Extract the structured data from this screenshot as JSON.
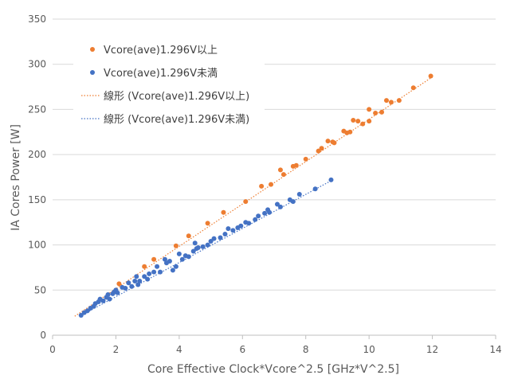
{
  "chart_data": {
    "type": "scatter",
    "xlabel": "Core Effective Clock*Vcore^2.5 [GHz*V^2.5]",
    "ylabel": "IA Cores Power [W]",
    "xlim": [
      0,
      14
    ],
    "ylim": [
      0,
      350
    ],
    "xticks": [
      0,
      2,
      4,
      6,
      8,
      10,
      12,
      14
    ],
    "yticks": [
      0,
      50,
      100,
      150,
      200,
      250,
      300,
      350
    ],
    "grid": "horizontal",
    "legend_position": "top-left",
    "series": [
      {
        "name": "Vcore(ave)1.296V以上",
        "color": "#ED7D31",
        "points": [
          [
            2.1,
            57
          ],
          [
            2.9,
            76
          ],
          [
            3.2,
            84
          ],
          [
            3.9,
            99
          ],
          [
            4.3,
            110
          ],
          [
            4.9,
            124
          ],
          [
            5.4,
            136
          ],
          [
            6.1,
            148
          ],
          [
            6.6,
            165
          ],
          [
            6.9,
            167
          ],
          [
            7.2,
            183
          ],
          [
            7.3,
            178
          ],
          [
            7.6,
            187
          ],
          [
            7.7,
            188
          ],
          [
            8.0,
            195
          ],
          [
            8.4,
            204
          ],
          [
            8.5,
            207
          ],
          [
            8.7,
            215
          ],
          [
            8.85,
            214
          ],
          [
            8.9,
            213
          ],
          [
            9.2,
            226
          ],
          [
            9.3,
            224
          ],
          [
            9.4,
            225
          ],
          [
            9.5,
            238
          ],
          [
            9.65,
            237
          ],
          [
            9.8,
            234
          ],
          [
            10.0,
            250
          ],
          [
            10.0,
            237
          ],
          [
            10.2,
            246
          ],
          [
            10.4,
            247
          ],
          [
            10.55,
            260
          ],
          [
            10.7,
            258
          ],
          [
            10.95,
            260
          ],
          [
            11.4,
            274
          ],
          [
            11.95,
            287
          ]
        ]
      },
      {
        "name": "Vcore(ave)1.296V未満",
        "color": "#4472C4",
        "points": [
          [
            0.9,
            22
          ],
          [
            1.0,
            25
          ],
          [
            1.1,
            27
          ],
          [
            1.2,
            30
          ],
          [
            1.3,
            32
          ],
          [
            1.35,
            35
          ],
          [
            1.45,
            37
          ],
          [
            1.5,
            40
          ],
          [
            1.6,
            38
          ],
          [
            1.7,
            42
          ],
          [
            1.75,
            45
          ],
          [
            1.8,
            40
          ],
          [
            1.9,
            46
          ],
          [
            1.95,
            48
          ],
          [
            2.0,
            50
          ],
          [
            2.05,
            47
          ],
          [
            2.2,
            53
          ],
          [
            2.3,
            52
          ],
          [
            2.4,
            58
          ],
          [
            2.5,
            54
          ],
          [
            2.6,
            60
          ],
          [
            2.65,
            65
          ],
          [
            2.7,
            56
          ],
          [
            2.75,
            60
          ],
          [
            2.9,
            65
          ],
          [
            3.0,
            62
          ],
          [
            3.05,
            68
          ],
          [
            3.2,
            70
          ],
          [
            3.3,
            76
          ],
          [
            3.4,
            70
          ],
          [
            3.55,
            84
          ],
          [
            3.6,
            80
          ],
          [
            3.7,
            82
          ],
          [
            3.8,
            72
          ],
          [
            3.9,
            76
          ],
          [
            4.0,
            90
          ],
          [
            4.1,
            84
          ],
          [
            4.2,
            88
          ],
          [
            4.3,
            87
          ],
          [
            4.45,
            93
          ],
          [
            4.5,
            102
          ],
          [
            4.55,
            96
          ],
          [
            4.6,
            97
          ],
          [
            4.75,
            98
          ],
          [
            4.9,
            100
          ],
          [
            5.0,
            104
          ],
          [
            5.1,
            107
          ],
          [
            5.3,
            108
          ],
          [
            5.45,
            112
          ],
          [
            5.55,
            118
          ],
          [
            5.7,
            116
          ],
          [
            5.85,
            119
          ],
          [
            5.95,
            121
          ],
          [
            6.1,
            125
          ],
          [
            6.2,
            124
          ],
          [
            6.4,
            128
          ],
          [
            6.5,
            132
          ],
          [
            6.7,
            135
          ],
          [
            6.8,
            139
          ],
          [
            6.85,
            136
          ],
          [
            7.1,
            145
          ],
          [
            7.2,
            142
          ],
          [
            7.5,
            150
          ],
          [
            7.6,
            148
          ],
          [
            7.8,
            156
          ],
          [
            8.3,
            162
          ],
          [
            8.8,
            172
          ]
        ]
      }
    ],
    "trendlines": [
      {
        "name": "線形 (Vcore(ave)1.296V以上)",
        "color": "#ED7D31",
        "from": [
          0.7,
          21
        ],
        "to": [
          12.0,
          286
        ]
      },
      {
        "name": "線形 (Vcore(ave)1.296V未満)",
        "color": "#4472C4",
        "from": [
          0.85,
          21
        ],
        "to": [
          8.85,
          172
        ]
      }
    ]
  }
}
